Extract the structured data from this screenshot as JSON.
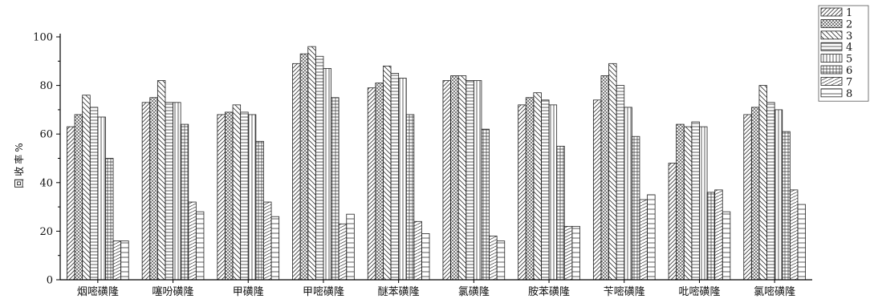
{
  "chart_data": {
    "type": "bar",
    "title": "",
    "xlabel": "",
    "ylabel": "回收率%",
    "ylim": [
      0,
      100
    ],
    "yticks": [
      0,
      20,
      40,
      60,
      80,
      100
    ],
    "grid": false,
    "legend_position": "top-right",
    "categories": [
      "烟嘧磺隆",
      "噻吩磺隆",
      "甲磺隆",
      "甲嘧磺隆",
      "醚苯磺隆",
      "氯磺隆",
      "胺苯磺隆",
      "苄嘧磺隆",
      "吡嘧磺隆",
      "氯嘧磺隆"
    ],
    "series": [
      {
        "name": "1",
        "values": [
          63,
          73,
          68,
          89,
          79,
          82,
          72,
          74,
          48,
          68
        ]
      },
      {
        "name": "2",
        "values": [
          68,
          75,
          69,
          93,
          81,
          84,
          75,
          84,
          64,
          71
        ]
      },
      {
        "name": "3",
        "values": [
          76,
          82,
          72,
          96,
          88,
          84,
          77,
          89,
          63,
          80
        ]
      },
      {
        "name": "4",
        "values": [
          71,
          73,
          69,
          92,
          85,
          82,
          74,
          80,
          65,
          73
        ]
      },
      {
        "name": "5",
        "values": [
          67,
          73,
          68,
          87,
          83,
          82,
          72,
          71,
          63,
          70
        ]
      },
      {
        "name": "6",
        "values": [
          50,
          64,
          57,
          75,
          68,
          62,
          55,
          59,
          36,
          61
        ]
      },
      {
        "name": "7",
        "values": [
          16,
          32,
          32,
          23,
          24,
          18,
          22,
          33,
          37,
          37
        ]
      },
      {
        "name": "8",
        "values": [
          16,
          28,
          26,
          27,
          19,
          16,
          22,
          35,
          28,
          31
        ]
      }
    ]
  }
}
